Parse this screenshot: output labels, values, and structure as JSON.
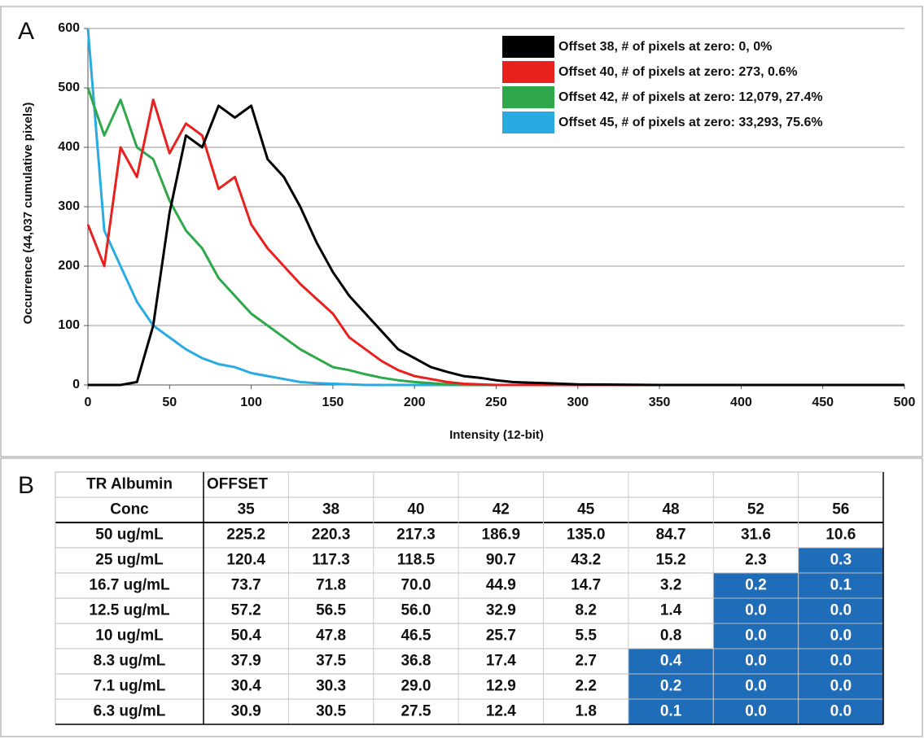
{
  "chart_data": {
    "type": "line",
    "panel_label": "A",
    "x_label": "Intensity (12-bit)",
    "y_label": "Occurrence (44,037 cumulative pixels)",
    "x": [
      0,
      10,
      20,
      30,
      40,
      50,
      60,
      70,
      80,
      90,
      100,
      110,
      120,
      130,
      140,
      150,
      160,
      170,
      180,
      190,
      200,
      210,
      220,
      230,
      240,
      250,
      260,
      270,
      280,
      290,
      300,
      350,
      400,
      450,
      500
    ],
    "series": [
      {
        "name": "Offset 38, # of pixels at zero: 0, 0%",
        "color": "#000000",
        "values": [
          0,
          0,
          0,
          5,
          100,
          290,
          420,
          400,
          470,
          450,
          470,
          380,
          350,
          300,
          240,
          190,
          150,
          120,
          90,
          60,
          45,
          30,
          22,
          15,
          12,
          8,
          5,
          4,
          3,
          2,
          1,
          0,
          0,
          0,
          0
        ]
      },
      {
        "name": "Offset 40, # of pixels at zero: 273, 0.6%",
        "color": "#e8211f",
        "values": [
          270,
          200,
          400,
          350,
          480,
          390,
          440,
          420,
          330,
          350,
          270,
          230,
          200,
          170,
          145,
          120,
          80,
          60,
          40,
          25,
          15,
          10,
          5,
          2,
          1,
          0,
          0,
          0,
          0,
          0,
          0,
          0,
          0,
          0,
          0
        ]
      },
      {
        "name": "Offset 42, # of pixels at zero: 12,079, 27.4%",
        "color": "#2ea84a",
        "values": [
          500,
          420,
          480,
          400,
          380,
          310,
          260,
          230,
          180,
          150,
          120,
          100,
          80,
          60,
          45,
          30,
          25,
          18,
          12,
          8,
          5,
          3,
          1,
          0,
          0,
          0,
          0,
          0,
          0,
          0,
          0,
          0,
          0,
          0,
          0
        ]
      },
      {
        "name": "Offset 45, # of pixels at zero: 33,293, 75.6%",
        "color": "#29abe2",
        "values": [
          600,
          260,
          200,
          140,
          100,
          80,
          60,
          45,
          35,
          30,
          20,
          15,
          10,
          5,
          3,
          2,
          1,
          0,
          0,
          0,
          0,
          0,
          0,
          0,
          0,
          0,
          0,
          0,
          0,
          0,
          0,
          0,
          0,
          0,
          0
        ]
      }
    ],
    "xlim": [
      0,
      500
    ],
    "xticks": [
      0,
      50,
      100,
      150,
      200,
      250,
      300,
      350,
      400,
      450,
      500
    ],
    "ylim": [
      0,
      600
    ],
    "yticks": [
      0,
      100,
      200,
      300,
      400,
      500,
      600
    ],
    "grid": true,
    "legend": "top-right"
  },
  "table": {
    "panel_label": "B",
    "corner": [
      "TR Albumin",
      "Conc"
    ],
    "group_header": "OFFSET",
    "columns": [
      35,
      38,
      40,
      42,
      45,
      48,
      52,
      56
    ],
    "highlight_color": "#1f6cb8",
    "rows": [
      {
        "label": "50 ug/mL",
        "cells": [
          "225.2",
          "220.3",
          "217.3",
          "186.9",
          "135.0",
          "84.7",
          "31.6",
          "10.6"
        ],
        "highlighted": 0
      },
      {
        "label": "25 ug/mL",
        "cells": [
          "120.4",
          "117.3",
          "118.5",
          "90.7",
          "43.2",
          "15.2",
          "2.3",
          "0.3"
        ],
        "highlighted": 1
      },
      {
        "label": "16.7 ug/mL",
        "cells": [
          "73.7",
          "71.8",
          "70.0",
          "44.9",
          "14.7",
          "3.2",
          "0.2",
          "0.1"
        ],
        "highlighted": 2
      },
      {
        "label": "12.5 ug/mL",
        "cells": [
          "57.2",
          "56.5",
          "56.0",
          "32.9",
          "8.2",
          "1.4",
          "0.0",
          "0.0"
        ],
        "highlighted": 2
      },
      {
        "label": "10 ug/mL",
        "cells": [
          "50.4",
          "47.8",
          "46.5",
          "25.7",
          "5.5",
          "0.8",
          "0.0",
          "0.0"
        ],
        "highlighted": 2
      },
      {
        "label": "8.3 ug/mL",
        "cells": [
          "37.9",
          "37.5",
          "36.8",
          "17.4",
          "2.7",
          "0.4",
          "0.0",
          "0.0"
        ],
        "highlighted": 3
      },
      {
        "label": "7.1 ug/mL",
        "cells": [
          "30.4",
          "30.3",
          "29.0",
          "12.9",
          "2.2",
          "0.2",
          "0.0",
          "0.0"
        ],
        "highlighted": 3
      },
      {
        "label": "6.3 ug/mL",
        "cells": [
          "30.9",
          "30.5",
          "27.5",
          "12.4",
          "1.8",
          "0.1",
          "0.0",
          "0.0"
        ],
        "highlighted": 3
      }
    ]
  }
}
